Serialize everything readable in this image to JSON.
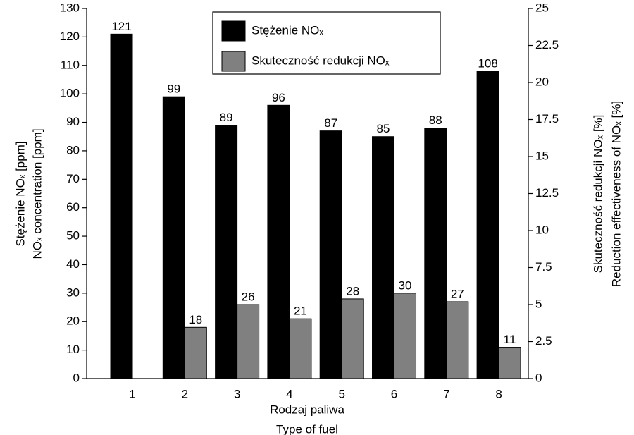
{
  "chart_data": {
    "type": "bar",
    "categories": [
      "1",
      "2",
      "3",
      "4",
      "5",
      "6",
      "7",
      "8"
    ],
    "series": [
      {
        "name": "Stężenie NOₓ",
        "color": "#000000",
        "values": [
          121,
          99,
          89,
          96,
          87,
          85,
          88,
          108
        ]
      },
      {
        "name": "Skuteczność redukcji NOₓ",
        "color": "#808080",
        "values": [
          null,
          18,
          26,
          21,
          28,
          30,
          27,
          11
        ]
      }
    ],
    "ylim": [
      0,
      130
    ],
    "yticks": [
      0,
      10,
      20,
      30,
      40,
      50,
      60,
      70,
      80,
      90,
      100,
      110,
      120,
      130
    ],
    "y2lim": [
      0,
      25
    ],
    "y2ticks": [
      0,
      2.5,
      5,
      7.5,
      10,
      12.5,
      15,
      17.5,
      20,
      22.5,
      25
    ],
    "ylabel": [
      "Stężenie NOₓ [ppm]",
      "NOₓ concentration [ppm]"
    ],
    "y2label": [
      "Skuteczność redukcji NOₓ [%]",
      "Reduction effectiveness of NOₓ [%]"
    ],
    "xlabel": [
      "Rodzaj paliwa",
      "Type of fuel"
    ],
    "legend": "upper center"
  }
}
